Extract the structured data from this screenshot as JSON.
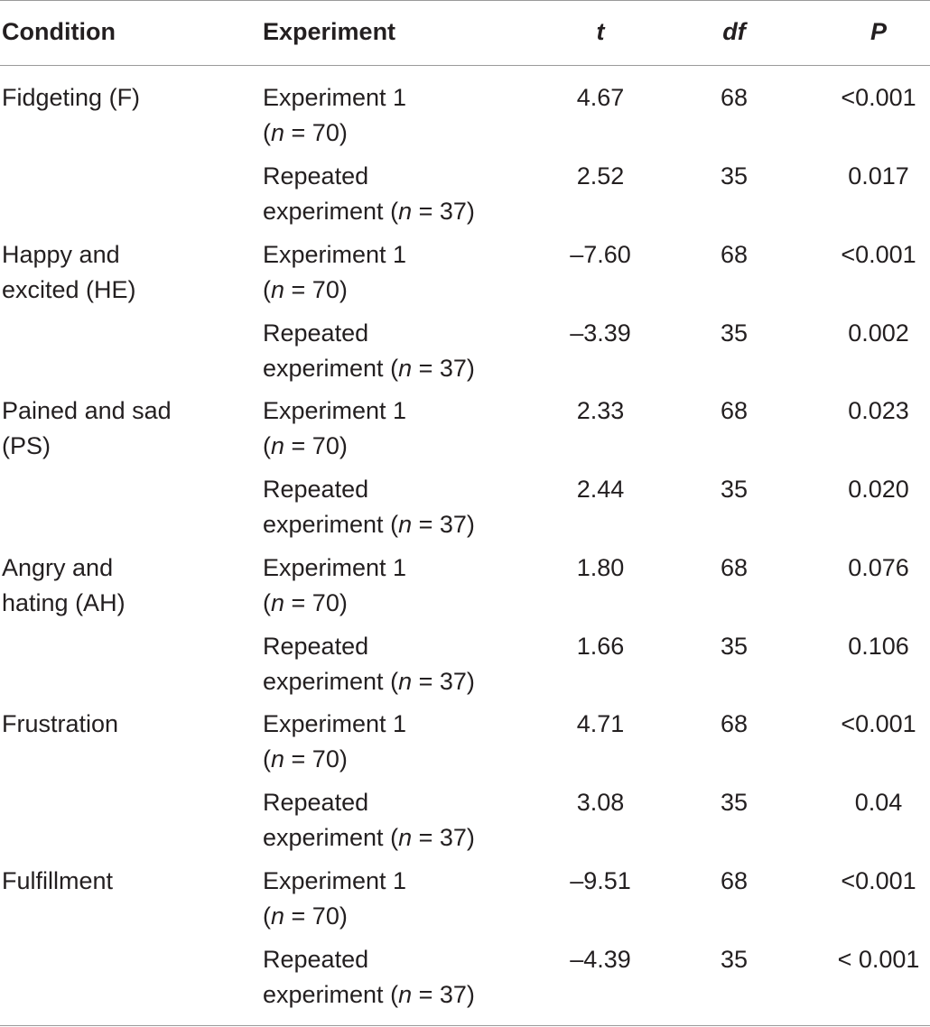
{
  "header": {
    "condition": "Condition",
    "experiment": "Experiment",
    "t": "t",
    "df": "df",
    "p": "P"
  },
  "rows": [
    {
      "condition": [
        "Fidgeting (F)",
        ""
      ],
      "exp": {
        "pre": [
          "Experiment 1",
          "("
        ],
        "n": "n",
        "post": " = 70)"
      },
      "t": "4.67",
      "df": "68",
      "p": "<0.001"
    },
    {
      "condition": [
        "",
        ""
      ],
      "exp": {
        "pre": [
          "Repeated",
          "experiment ("
        ],
        "n": "n",
        "post": " = 37)"
      },
      "t": "2.52",
      "df": "35",
      "p": "0.017"
    },
    {
      "condition": [
        "Happy and",
        "excited (HE)"
      ],
      "exp": {
        "pre": [
          "Experiment 1",
          "("
        ],
        "n": "n",
        "post": " = 70)"
      },
      "t": "–7.60",
      "df": "68",
      "p": "<0.001"
    },
    {
      "condition": [
        "",
        ""
      ],
      "exp": {
        "pre": [
          "Repeated",
          "experiment ("
        ],
        "n": "n",
        "post": " = 37)"
      },
      "t": "–3.39",
      "df": "35",
      "p": "0.002"
    },
    {
      "condition": [
        "Pained and sad",
        "(PS)"
      ],
      "exp": {
        "pre": [
          "Experiment 1",
          "("
        ],
        "n": "n",
        "post": " = 70)"
      },
      "t": "2.33",
      "df": "68",
      "p": "0.023"
    },
    {
      "condition": [
        "",
        ""
      ],
      "exp": {
        "pre": [
          "Repeated",
          "experiment ("
        ],
        "n": "n",
        "post": " = 37)"
      },
      "t": "2.44",
      "df": "35",
      "p": "0.020"
    },
    {
      "condition": [
        "Angry and",
        "hating (AH)"
      ],
      "exp": {
        "pre": [
          "Experiment 1",
          "("
        ],
        "n": "n",
        "post": " = 70)"
      },
      "t": "1.80",
      "df": "68",
      "p": "0.076"
    },
    {
      "condition": [
        "",
        ""
      ],
      "exp": {
        "pre": [
          "Repeated",
          "experiment ("
        ],
        "n": "n",
        "post": " = 37)"
      },
      "t": "1.66",
      "df": "35",
      "p": "0.106"
    },
    {
      "condition": [
        "Frustration",
        ""
      ],
      "exp": {
        "pre": [
          "Experiment 1",
          "("
        ],
        "n": "n",
        "post": " = 70)"
      },
      "t": "4.71",
      "df": "68",
      "p": "<0.001"
    },
    {
      "condition": [
        "",
        ""
      ],
      "exp": {
        "pre": [
          "Repeated",
          "experiment ("
        ],
        "n": "n",
        "post": " = 37)"
      },
      "t": "3.08",
      "df": "35",
      "p": "0.04"
    },
    {
      "condition": [
        "Fulfillment",
        ""
      ],
      "exp": {
        "pre": [
          "Experiment 1",
          "("
        ],
        "n": "n",
        "post": " = 70)"
      },
      "t": "–9.51",
      "df": "68",
      "p": "<0.001"
    },
    {
      "condition": [
        "",
        ""
      ],
      "exp": {
        "pre": [
          "Repeated",
          "experiment ("
        ],
        "n": "n",
        "post": " = 37)"
      },
      "t": "–4.39",
      "df": "35",
      "p": "< 0.001"
    }
  ]
}
